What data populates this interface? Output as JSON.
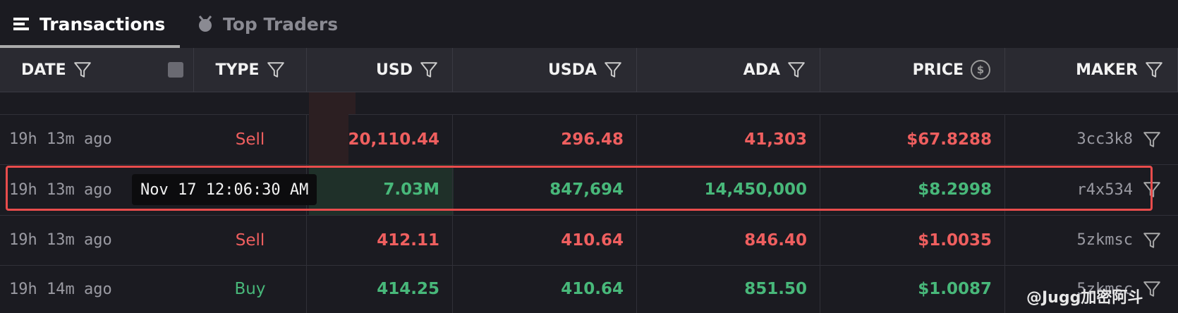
{
  "tabs": [
    "Transactions",
    "Top Traders"
  ],
  "columns": [
    "DATE",
    "TYPE",
    "USD",
    "USDA",
    "ADA",
    "PRICE",
    "MAKER"
  ],
  "rows": [
    {
      "date": "19h 13m ago",
      "type": "Sell",
      "usd": "20,110.44",
      "usda": "296.48",
      "ada": "41,303",
      "price": "$67.8288",
      "maker": "3cc3k8"
    },
    {
      "date": "19h 13m ago",
      "tooltip": "Nov 17 12:06:30 AM",
      "usd": "7.03M",
      "usda": "847,694",
      "ada": "14,450,000",
      "price": "$8.2998",
      "maker": "r4x534"
    },
    {
      "date": "19h 13m ago",
      "type": "Sell",
      "usd": "412.11",
      "usda": "410.64",
      "ada": "846.40",
      "price": "$1.0035",
      "maker": "5zkmsc"
    },
    {
      "date": "19h 14m ago",
      "type": "Buy",
      "usd": "414.25",
      "usda": "410.64",
      "ada": "851.50",
      "price": "$1.0087",
      "maker": "5zkmsc"
    }
  ],
  "watermark": "@Jugg加密阿斗"
}
